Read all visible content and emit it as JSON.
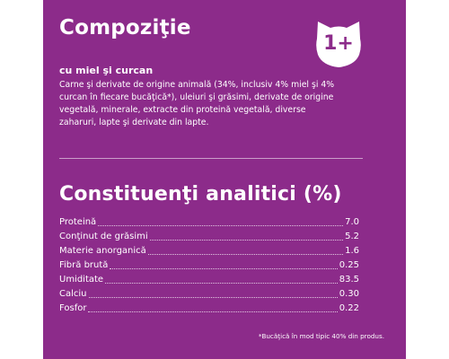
{
  "panel": {
    "background_color": "#8c2b8a",
    "text_color": "#ffffff"
  },
  "composition": {
    "title": "Compoziţie",
    "subtitle": "cu miel şi curcan",
    "description": "Carne şi derivate de origine animală (34%, inclusiv 4% miel şi 4% curcan în fiecare bucăţică*), uleiuri şi grăsimi, derivate de origine vegetală, minerale, extracte din proteină vegetală, diverse zaharuri, lapte şi derivate din lapte."
  },
  "badge": {
    "icon": "cat-head-icon",
    "text": "1+"
  },
  "analytical": {
    "title": "Constituenţi analitici (%)",
    "rows": [
      {
        "label": "Proteină",
        "value": "7.0"
      },
      {
        "label": "Conţinut de grăsimi",
        "value": "5.2"
      },
      {
        "label": "Materie anorganică",
        "value": "1.6"
      },
      {
        "label": "Fibră brută",
        "value": "0.25"
      },
      {
        "label": "Umiditate",
        "value": "83.5"
      },
      {
        "label": "Calciu",
        "value": "0.30"
      },
      {
        "label": "Fosfor",
        "value": "0.22"
      }
    ]
  },
  "footnote": "*Bucăţică în mod tipic 40% din produs."
}
